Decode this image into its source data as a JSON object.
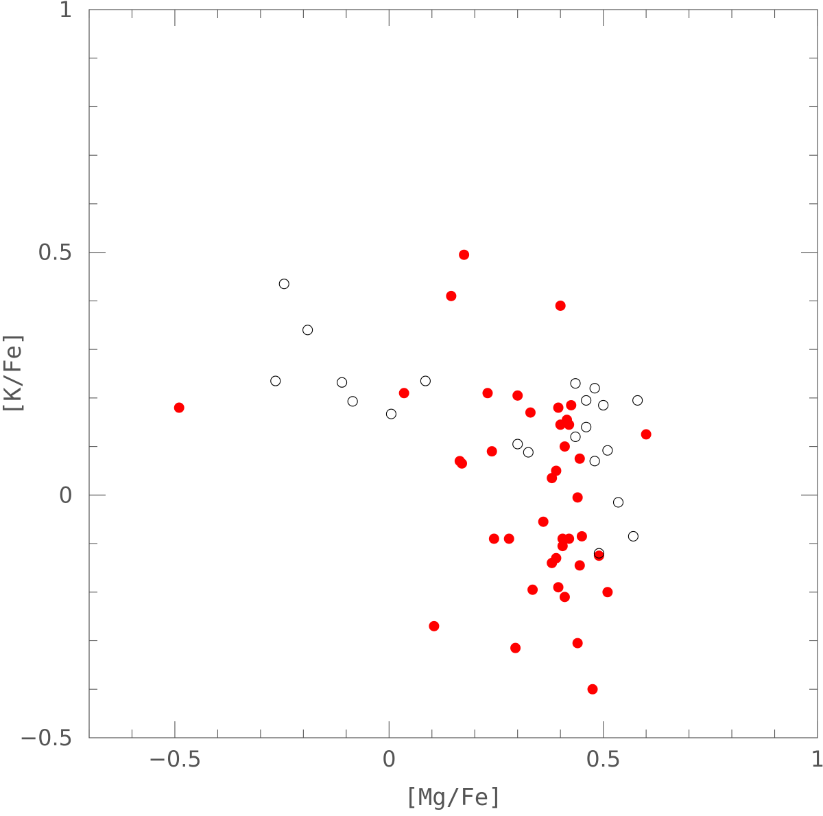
{
  "chart_data": {
    "type": "scatter",
    "title": "",
    "xlabel": "[Mg/Fe]",
    "ylabel": "[K/Fe]",
    "xlim": [
      -0.7,
      1.0
    ],
    "ylim": [
      -0.5,
      1.0
    ],
    "x_ticks": [
      -0.5,
      0,
      0.5,
      1
    ],
    "x_tick_labels": [
      "−0.5",
      "0",
      "0.5",
      "1"
    ],
    "y_ticks": [
      -0.5,
      0,
      0.5,
      1
    ],
    "y_tick_labels": [
      "−0.5",
      "0",
      "0.5",
      "1"
    ],
    "x_minor_step": 0.1,
    "y_minor_step": 0.1,
    "grid": false,
    "series": [
      {
        "marker": "filled-circle",
        "color": "#ff0000",
        "points": [
          [
            -0.49,
            0.18
          ],
          [
            0.035,
            0.21
          ],
          [
            0.145,
            0.41
          ],
          [
            0.175,
            0.495
          ],
          [
            0.165,
            0.07
          ],
          [
            0.17,
            0.065
          ],
          [
            0.105,
            -0.27
          ],
          [
            0.23,
            0.21
          ],
          [
            0.24,
            0.09
          ],
          [
            0.245,
            -0.09
          ],
          [
            0.28,
            -0.09
          ],
          [
            0.295,
            -0.315
          ],
          [
            0.3,
            0.205
          ],
          [
            0.33,
            0.17
          ],
          [
            0.335,
            -0.195
          ],
          [
            0.36,
            -0.055
          ],
          [
            0.38,
            0.035
          ],
          [
            0.38,
            -0.14
          ],
          [
            0.39,
            -0.13
          ],
          [
            0.39,
            0.05
          ],
          [
            0.395,
            -0.19
          ],
          [
            0.395,
            0.18
          ],
          [
            0.4,
            0.39
          ],
          [
            0.4,
            0.145
          ],
          [
            0.405,
            -0.09
          ],
          [
            0.405,
            -0.105
          ],
          [
            0.41,
            0.1
          ],
          [
            0.41,
            -0.21
          ],
          [
            0.415,
            0.155
          ],
          [
            0.42,
            0.145
          ],
          [
            0.42,
            -0.09
          ],
          [
            0.425,
            0.185
          ],
          [
            0.44,
            -0.005
          ],
          [
            0.44,
            -0.305
          ],
          [
            0.445,
            -0.145
          ],
          [
            0.445,
            0.075
          ],
          [
            0.45,
            -0.085
          ],
          [
            0.475,
            -0.4
          ],
          [
            0.49,
            -0.125
          ],
          [
            0.51,
            -0.2
          ],
          [
            0.6,
            0.125
          ]
        ]
      },
      {
        "marker": "open-circle",
        "color": "#000000",
        "points": [
          [
            -0.265,
            0.235
          ],
          [
            -0.245,
            0.435
          ],
          [
            -0.19,
            0.34
          ],
          [
            -0.11,
            0.232
          ],
          [
            -0.085,
            0.193
          ],
          [
            0.005,
            0.167
          ],
          [
            0.085,
            0.235
          ],
          [
            0.3,
            0.105
          ],
          [
            0.325,
            0.088
          ],
          [
            0.435,
            0.12
          ],
          [
            0.435,
            0.23
          ],
          [
            0.46,
            0.14
          ],
          [
            0.46,
            0.195
          ],
          [
            0.48,
            0.07
          ],
          [
            0.48,
            0.22
          ],
          [
            0.49,
            -0.12
          ],
          [
            0.5,
            0.185
          ],
          [
            0.51,
            0.092
          ],
          [
            0.535,
            -0.015
          ],
          [
            0.57,
            -0.085
          ],
          [
            0.58,
            0.195
          ]
        ]
      }
    ]
  }
}
